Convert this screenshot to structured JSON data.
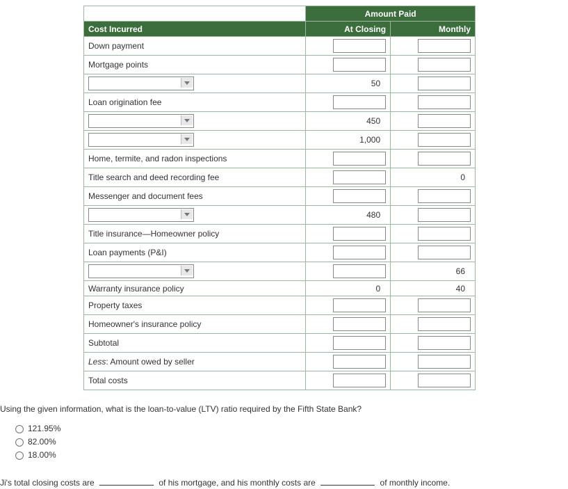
{
  "table": {
    "header_amount": "Amount Paid",
    "header_cost": "Cost Incurred",
    "header_closing": "At Closing",
    "header_monthly": "Monthly",
    "rows": [
      {
        "label": "Down payment",
        "closing_input": true,
        "monthly_input": true
      },
      {
        "label": "Mortgage points",
        "closing_input": true,
        "monthly_input": true
      },
      {
        "dropdown": true,
        "closing_val": "50",
        "monthly_input": true
      },
      {
        "label": "Loan origination fee",
        "closing_input": true,
        "monthly_input": true
      },
      {
        "dropdown": true,
        "closing_val": "450",
        "monthly_input": true
      },
      {
        "dropdown": true,
        "closing_val": "1,000",
        "monthly_input": true
      },
      {
        "label": "Home, termite, and radon inspections",
        "closing_input": true,
        "monthly_input": true
      },
      {
        "label": "Title search and deed recording fee",
        "closing_input": true,
        "monthly_val": "0"
      },
      {
        "label": "Messenger and document fees",
        "closing_input": true,
        "monthly_input": true
      },
      {
        "dropdown": true,
        "closing_val": "480",
        "monthly_input": true
      },
      {
        "label": "Title insurance—Homeowner policy",
        "closing_input": true,
        "monthly_input": true
      },
      {
        "label": "Loan payments (P&I)",
        "closing_input": true,
        "monthly_input": true
      },
      {
        "dropdown": true,
        "closing_input": true,
        "monthly_val": "66"
      },
      {
        "label": "Warranty insurance policy",
        "closing_val": "0",
        "monthly_val": "40"
      },
      {
        "label": "Property taxes",
        "closing_input": true,
        "monthly_input": true
      },
      {
        "label": "Homeowner's insurance policy",
        "closing_input": true,
        "monthly_input": true
      },
      {
        "label": "Subtotal",
        "closing_input": true,
        "monthly_input": true
      },
      {
        "label_html": "<span class='italic'>Less</span>: Amount owed by seller",
        "closing_input": true,
        "monthly_input": true
      },
      {
        "label": "Total costs",
        "closing_input": true,
        "monthly_input": true
      }
    ]
  },
  "question": "Using the given information, what is the loan-to-value (LTV) ratio required by the Fifth State Bank?",
  "choices": [
    "121.95%",
    "82.00%",
    "18.00%"
  ],
  "fill": {
    "p1": "Ji's total closing costs are",
    "p2": "of his mortgage, and his monthly costs are",
    "p3": "of monthly income."
  },
  "colors": {
    "header_bg": "#3b6e3c",
    "border": "#9db79e",
    "text": "#333333",
    "input_border": "#888888",
    "background": "#ffffff"
  }
}
